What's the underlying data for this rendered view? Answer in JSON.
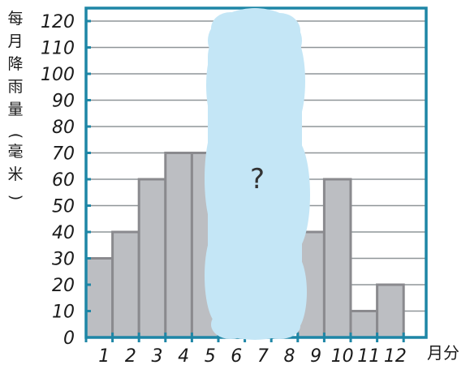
{
  "chart_data": {
    "type": "bar",
    "categories": [
      "1",
      "2",
      "3",
      "4",
      "5",
      "6",
      "7",
      "8",
      "9",
      "10",
      "11",
      "12"
    ],
    "values": [
      30,
      40,
      60,
      70,
      70,
      null,
      null,
      null,
      40,
      60,
      10,
      20
    ],
    "hidden_categories": [
      "6",
      "7",
      "8"
    ],
    "hidden_label": "?",
    "ylabel_chars": [
      "每",
      "月",
      "降",
      "雨",
      "量",
      "(",
      "毫",
      "米",
      ")"
    ],
    "xunit": "月分",
    "yticks": [
      0,
      10,
      20,
      30,
      40,
      50,
      60,
      70,
      80,
      90,
      100,
      110,
      120
    ],
    "ylim": [
      0,
      130
    ],
    "grid": true,
    "colors": {
      "bar_fill": "#bcbec2",
      "bar_stroke": "#8a8a8e",
      "frame": "#1e86a6",
      "grid": "#8f9598",
      "cloud": "#c4e6f6"
    }
  }
}
